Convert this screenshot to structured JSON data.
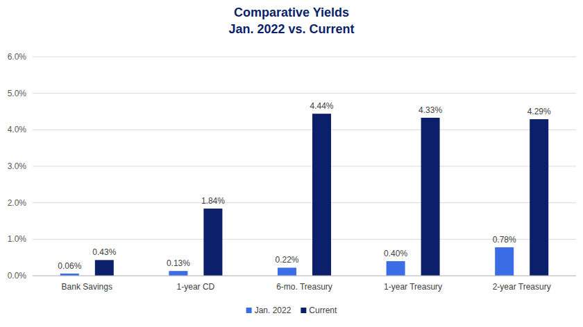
{
  "chart_data": {
    "type": "bar",
    "title": "Comparative Yields",
    "subtitle": "Jan. 2022 vs. Current",
    "categories": [
      "Bank Savings",
      "1-year CD",
      "6-mo. Treasury",
      "1-year Treasury",
      "2-year Treasury"
    ],
    "series": [
      {
        "name": "Jan. 2022",
        "color": "#3b6ee6",
        "values": [
          0.06,
          0.13,
          0.22,
          0.4,
          0.78
        ],
        "value_labels": [
          "0.06%",
          "0.13%",
          "0.22%",
          "0.40%",
          "0.78%"
        ]
      },
      {
        "name": "Current",
        "color": "#0b1f6b",
        "values": [
          0.43,
          1.84,
          4.44,
          4.33,
          4.29
        ],
        "value_labels": [
          "0.43%",
          "1.84%",
          "4.44%",
          "4.33%",
          "4.29%"
        ]
      }
    ],
    "ylim": [
      0,
      6
    ],
    "yticks": [
      {
        "value": 0,
        "label": "0.0%"
      },
      {
        "value": 1,
        "label": "1.0%"
      },
      {
        "value": 2,
        "label": "2.0%"
      },
      {
        "value": 3,
        "label": "3.0%"
      },
      {
        "value": 4,
        "label": "4.0%"
      },
      {
        "value": 5,
        "label": "5.0%"
      },
      {
        "value": 6,
        "label": "6.0%"
      }
    ],
    "grid": true,
    "data_labels": true,
    "legend": "bottom"
  }
}
